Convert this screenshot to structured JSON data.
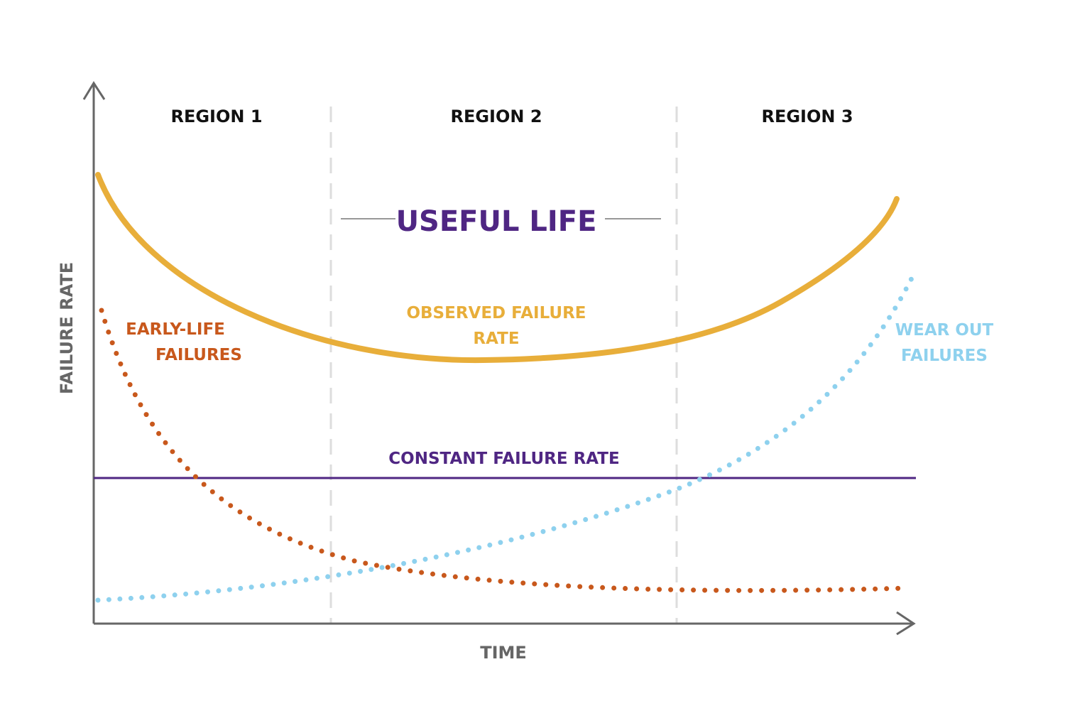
{
  "regions": [
    "REGION 1",
    "REGION 2",
    "REGION 3"
  ],
  "useful_life": "USEFUL LIFE",
  "labels": {
    "observed_line1": "OBSERVED FAILURE",
    "observed_line2": "RATE",
    "early_line1": "EARLY-LIFE",
    "early_line2": "FAILURES",
    "wear_line1": "WEAR OUT",
    "wear_line2": "FAILURES",
    "constant": "CONSTANT FAILURE RATE"
  },
  "axes": {
    "y_title": "FAILURE RATE",
    "x_title": "TIME"
  },
  "colors": {
    "observed": "#E8AE3A",
    "early": "#C8581C",
    "wear": "#8ED1EE",
    "constant": "#4F2683",
    "axis": "#666666",
    "divider": "#DDDDDD"
  }
}
